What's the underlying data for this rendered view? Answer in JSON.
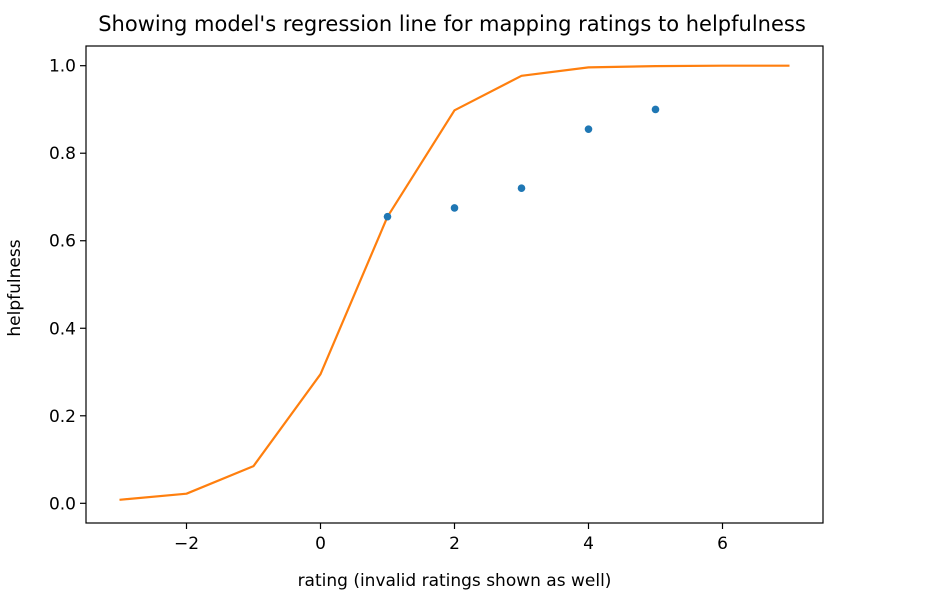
{
  "chart_data": {
    "type": "line",
    "title": "Showing model's regression line for mapping ratings to helpfulness",
    "xlabel": "rating (invalid ratings shown as well)",
    "ylabel": "helpfulness",
    "xlim": [
      -3.5,
      7.5
    ],
    "ylim": [
      -0.045,
      1.045
    ],
    "xticks": [
      -2,
      0,
      2,
      4,
      6
    ],
    "xtick_labels": [
      "−2",
      "0",
      "2",
      "4",
      "6"
    ],
    "yticks": [
      0.0,
      0.2,
      0.4,
      0.6,
      0.8,
      1.0
    ],
    "ytick_labels": [
      "0.0",
      "0.2",
      "0.4",
      "0.6",
      "0.8",
      "1.0"
    ],
    "grid": false,
    "series": [
      {
        "type": "scatter",
        "color": "#1f77b4",
        "x": [
          1,
          2,
          3,
          4,
          5
        ],
        "y": [
          0.655,
          0.675,
          0.72,
          0.855,
          0.9
        ]
      },
      {
        "type": "line",
        "color": "#ff7f0e",
        "x": [
          -3,
          -2,
          -1,
          0,
          1,
          2,
          3,
          4,
          5,
          6,
          7
        ],
        "y": [
          0.008,
          0.022,
          0.085,
          0.295,
          0.655,
          0.898,
          0.977,
          0.996,
          0.999,
          1.0,
          1.0
        ]
      }
    ]
  }
}
